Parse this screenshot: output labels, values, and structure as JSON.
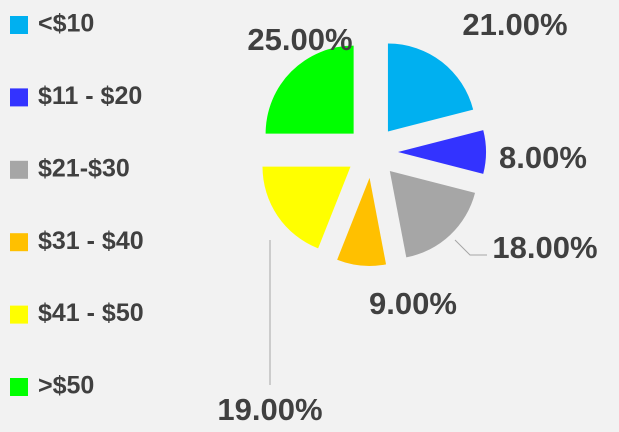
{
  "chart_data": {
    "type": "pie",
    "categories": [
      "<$10",
      "$11 - $20",
      "$21-$30",
      "$31 - $40",
      "$41 - $50",
      ">$50"
    ],
    "values": [
      21,
      8,
      18,
      9,
      19,
      25
    ],
    "value_labels": [
      "21.00%",
      "8.00%",
      "18.00%",
      "9.00%",
      "19.00%",
      "25.00%"
    ],
    "colors": [
      "#00b0f0",
      "#3333ff",
      "#a6a6a6",
      "#ffc000",
      "#ffff00",
      "#00ff00"
    ],
    "legend": "left"
  }
}
